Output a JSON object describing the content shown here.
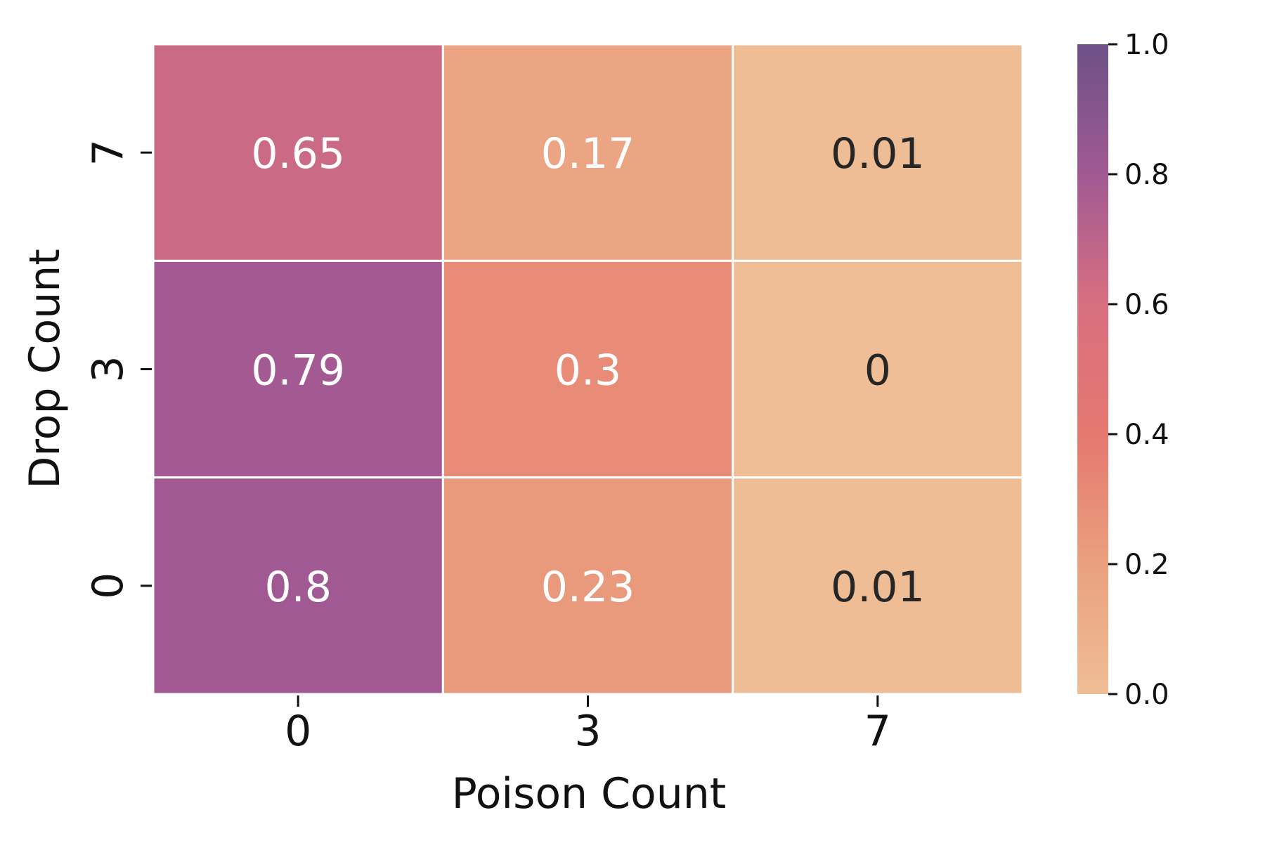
{
  "chart_data": {
    "type": "heatmap",
    "xlabel": "Poison Count",
    "ylabel": "Drop Count",
    "x_categories": [
      "0",
      "3",
      "7"
    ],
    "y_categories": [
      "7",
      "3",
      "0"
    ],
    "values": [
      [
        0.65,
        0.17,
        0.01
      ],
      [
        0.79,
        0.3,
        0
      ],
      [
        0.8,
        0.23,
        0.01
      ]
    ],
    "cell_labels": [
      [
        "0.65",
        "0.17",
        "0.01"
      ],
      [
        "0.79",
        "0.3",
        "0"
      ],
      [
        "0.8",
        "0.23",
        "0.01"
      ]
    ],
    "colorbar": {
      "range": [
        0.0,
        1.0
      ],
      "ticks": [
        "0.0",
        "0.2",
        "0.4",
        "0.6",
        "0.8",
        "1.0"
      ],
      "colors": [
        "#efbe96",
        "#eaa07f",
        "#e5786f",
        "#d86f7f",
        "#a05993",
        "#6d5187"
      ]
    },
    "grid": false
  }
}
